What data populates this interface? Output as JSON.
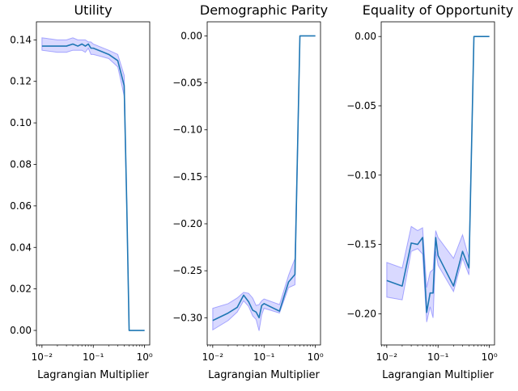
{
  "chart_data": [
    {
      "type": "line",
      "title": "Utility",
      "xlabel": "Lagrangian Multiplier",
      "ylabel": "",
      "xscale": "log",
      "xlim": [
        0.0078,
        1.26
      ],
      "ylim": [
        -0.007,
        0.1487
      ],
      "xticks": [
        0.01,
        0.1,
        1
      ],
      "xtick_labels": [
        "10⁻²",
        "10⁻¹",
        "10⁰"
      ],
      "yticks": [
        0.0,
        0.02,
        0.04,
        0.06,
        0.08,
        0.1,
        0.12,
        0.14
      ],
      "ytick_labels": [
        "0.00",
        "0.02",
        "0.04",
        "0.06",
        "0.08",
        "0.10",
        "0.12",
        "0.14"
      ],
      "line_color": "#1f77b4",
      "band_color": "#0000ff",
      "x": [
        0.01,
        0.02,
        0.03,
        0.04,
        0.05,
        0.06,
        0.07,
        0.08,
        0.09,
        0.1,
        0.2,
        0.3,
        0.4,
        0.45,
        0.5,
        0.6,
        0.7,
        0.8,
        0.9,
        1.0
      ],
      "y": [
        0.137,
        0.137,
        0.137,
        0.138,
        0.137,
        0.138,
        0.137,
        0.138,
        0.136,
        0.136,
        0.133,
        0.13,
        0.118,
        0.06,
        0.0,
        0.0,
        0.0,
        0.0,
        0.0,
        0.0
      ],
      "y_lower": [
        0.135,
        0.134,
        0.134,
        0.135,
        0.135,
        0.135,
        0.134,
        0.136,
        0.133,
        0.133,
        0.131,
        0.127,
        0.113,
        0.058,
        0.0,
        0.0,
        0.0,
        0.0,
        0.0,
        0.0
      ],
      "y_upper": [
        0.141,
        0.14,
        0.14,
        0.141,
        0.14,
        0.14,
        0.14,
        0.139,
        0.139,
        0.138,
        0.135,
        0.133,
        0.123,
        0.062,
        0.0,
        0.0,
        0.0,
        0.0,
        0.0,
        0.0
      ]
    },
    {
      "type": "line",
      "title": "Demographic Parity",
      "xlabel": "Lagrangian Multiplier",
      "ylabel": "",
      "xscale": "log",
      "xlim": [
        0.0078,
        1.26
      ],
      "ylim": [
        -0.329,
        0.015
      ],
      "xticks": [
        0.01,
        0.1,
        1
      ],
      "xtick_labels": [
        "10⁻²",
        "10⁻¹",
        "10⁰"
      ],
      "yticks": [
        -0.3,
        -0.25,
        -0.2,
        -0.15,
        -0.1,
        -0.05,
        0.0
      ],
      "ytick_labels": [
        "−0.30",
        "−0.25",
        "−0.20",
        "−0.15",
        "−0.10",
        "−0.05",
        "0.00"
      ],
      "line_color": "#1f77b4",
      "band_color": "#0000ff",
      "x": [
        0.01,
        0.02,
        0.03,
        0.04,
        0.05,
        0.06,
        0.07,
        0.08,
        0.09,
        0.1,
        0.2,
        0.3,
        0.4,
        0.5,
        0.6,
        0.7,
        0.8,
        0.9,
        1.0
      ],
      "y": [
        -0.303,
        -0.295,
        -0.289,
        -0.276,
        -0.283,
        -0.292,
        -0.294,
        -0.3,
        -0.287,
        -0.285,
        -0.293,
        -0.262,
        -0.254,
        0.0,
        0.0,
        0.0,
        0.0,
        0.0,
        0.0
      ],
      "y_lower": [
        -0.313,
        -0.303,
        -0.294,
        -0.282,
        -0.288,
        -0.298,
        -0.302,
        -0.314,
        -0.297,
        -0.29,
        -0.295,
        -0.268,
        -0.265,
        0.0,
        0.0,
        0.0,
        0.0,
        0.0,
        0.0
      ],
      "y_upper": [
        -0.29,
        -0.285,
        -0.279,
        -0.273,
        -0.274,
        -0.279,
        -0.287,
        -0.286,
        -0.282,
        -0.28,
        -0.286,
        -0.255,
        -0.237,
        0.0,
        0.0,
        0.0,
        0.0,
        0.0,
        0.0
      ]
    },
    {
      "type": "line",
      "title": "Equality of Opportunity",
      "xlabel": "Lagrangian Multiplier",
      "ylabel": "",
      "xscale": "log",
      "xlim": [
        0.0078,
        1.26
      ],
      "ylim": [
        -0.2225,
        0.0106
      ],
      "xticks": [
        0.01,
        0.1,
        1
      ],
      "xtick_labels": [
        "10⁻²",
        "10⁻¹",
        "10⁰"
      ],
      "yticks": [
        -0.2,
        -0.15,
        -0.1,
        -0.05,
        0.0
      ],
      "ytick_labels": [
        "−0.20",
        "−0.15",
        "−0.10",
        "−0.05",
        "0.00"
      ],
      "line_color": "#1f77b4",
      "band_color": "#0000ff",
      "x": [
        0.01,
        0.02,
        0.03,
        0.04,
        0.05,
        0.06,
        0.07,
        0.08,
        0.09,
        0.1,
        0.2,
        0.3,
        0.4,
        0.5,
        0.6,
        0.7,
        0.8,
        0.9,
        1.0
      ],
      "y": [
        -0.176,
        -0.18,
        -0.149,
        -0.15,
        -0.145,
        -0.199,
        -0.185,
        -0.185,
        -0.145,
        -0.158,
        -0.18,
        -0.155,
        -0.167,
        0.0,
        0.0,
        0.0,
        0.0,
        0.0,
        0.0
      ],
      "y_lower": [
        -0.188,
        -0.19,
        -0.155,
        -0.153,
        -0.157,
        -0.206,
        -0.195,
        -0.203,
        -0.155,
        -0.165,
        -0.184,
        -0.16,
        -0.172,
        0.0,
        0.0,
        0.0,
        0.0,
        0.0,
        0.0
      ],
      "y_upper": [
        -0.163,
        -0.167,
        -0.137,
        -0.14,
        -0.138,
        -0.181,
        -0.17,
        -0.168,
        -0.14,
        -0.145,
        -0.16,
        -0.143,
        -0.16,
        0.0,
        0.0,
        0.0,
        0.0,
        0.0,
        0.0
      ]
    }
  ]
}
